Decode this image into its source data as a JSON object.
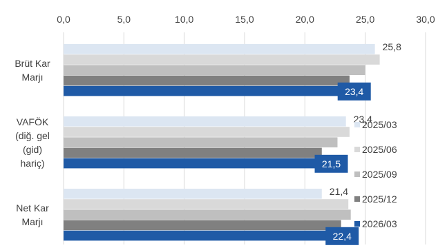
{
  "chart_data": {
    "type": "bar",
    "orientation": "horizontal",
    "title": "",
    "xlabel": "",
    "ylabel": "",
    "xlim": [
      0,
      30
    ],
    "x_ticks": [
      "0,0",
      "5,0",
      "10,0",
      "15,0",
      "20,0",
      "25,0",
      "30,0"
    ],
    "x_axis_position": "top",
    "grid": "vertical",
    "legend_position": "right",
    "categories": [
      [
        "Brüt Kar",
        "Marjı"
      ],
      [
        "VAFÖK",
        "(diğ. gel",
        "(gid)",
        "hariç)"
      ],
      [
        "Net Kar",
        "Marjı"
      ]
    ],
    "series": [
      {
        "name": "2025/03",
        "color": "#dce6f2",
        "values": [
          25.8,
          23.4,
          21.4
        ]
      },
      {
        "name": "2025/06",
        "color": "#d9d9d9",
        "values": [
          26.2,
          23.7,
          23.6
        ]
      },
      {
        "name": "2025/09",
        "color": "#bfbfbf",
        "values": [
          25.0,
          22.7,
          23.8
        ]
      },
      {
        "name": "2025/12",
        "color": "#808080",
        "values": [
          23.7,
          21.4,
          23.0
        ]
      },
      {
        "name": "2026/03",
        "color": "#1f5aa6",
        "values": [
          23.4,
          21.5,
          22.4
        ]
      }
    ],
    "data_labels": [
      {
        "category": 0,
        "series": 0,
        "text": "25,8",
        "style": "plain"
      },
      {
        "category": 0,
        "series": 4,
        "text": "23,4",
        "style": "box"
      },
      {
        "category": 1,
        "series": 0,
        "text": "23,4",
        "style": "plain"
      },
      {
        "category": 1,
        "series": 4,
        "text": "21,5",
        "style": "box"
      },
      {
        "category": 2,
        "series": 0,
        "text": "21,4",
        "style": "plain"
      },
      {
        "category": 2,
        "series": 4,
        "text": "22,4",
        "style": "box"
      }
    ]
  }
}
